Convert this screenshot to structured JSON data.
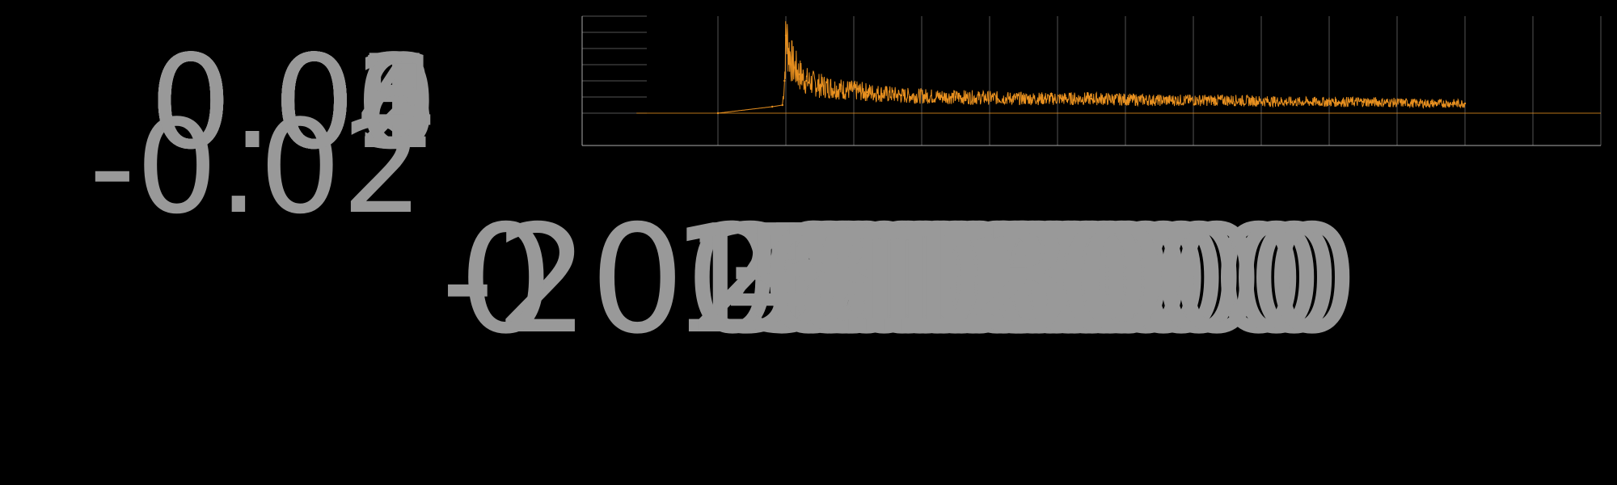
{
  "chart_data": {
    "type": "line",
    "title": "",
    "xlabel": "",
    "ylabel": "",
    "xlim": [
      -2000,
      13000
    ],
    "ylim": [
      -0.02,
      0.06
    ],
    "grid": true,
    "legend": "none",
    "x_ticks": [
      "-2000",
      "0",
      "1000",
      "2000",
      "3000",
      "4000",
      "5000",
      "6000",
      "7000",
      "8000",
      "9000",
      "10000",
      "11000",
      "12000",
      "13000"
    ],
    "y_ticks": [
      "-0.02",
      "0.00",
      "0.01",
      "0.02",
      "0.03",
      "0.04",
      "0.05",
      "0.06"
    ],
    "series": [
      {
        "color": "#e8901f",
        "x": [
          0,
          800,
          950,
          980,
          1000,
          1050,
          1100,
          1200,
          1300,
          1500,
          1800,
          2200,
          2700,
          3500,
          4500,
          5500,
          6500,
          7500,
          8500,
          9500,
          10500,
          11000
        ],
        "y": [
          0.0,
          0.004,
          0.005,
          0.02,
          0.048,
          0.038,
          0.03,
          0.024,
          0.02,
          0.017,
          0.015,
          0.013,
          0.011,
          0.01,
          0.009,
          0.009,
          0.008,
          0.008,
          0.007,
          0.007,
          0.006,
          0.006
        ]
      }
    ]
  },
  "colors": {
    "background": "#000000",
    "axis": "#aaaaaa",
    "grid": "#555555",
    "tick_text": "#999999",
    "series": "#e8901f"
  }
}
